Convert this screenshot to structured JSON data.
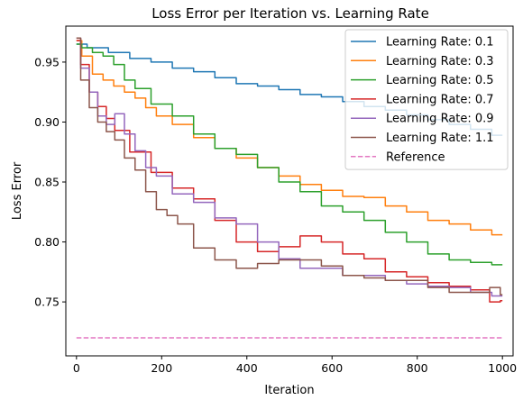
{
  "chart_data": {
    "type": "line",
    "title": "Loss Error per Iteration vs. Learning Rate",
    "xlabel": "Iteration",
    "ylabel": "Loss Error",
    "xlim": [
      -25,
      1025
    ],
    "ylim": [
      0.705,
      0.98
    ],
    "xticks": [
      0,
      200,
      400,
      600,
      800,
      1000
    ],
    "yticks": [
      0.75,
      0.8,
      0.85,
      0.9,
      0.95
    ],
    "ytick_labels": [
      "0.75",
      "0.80",
      "0.85",
      "0.90",
      "0.95"
    ],
    "grid": false,
    "legend": "top-right",
    "series": [
      {
        "name": "Learning Rate: 0.1",
        "color": "#1f77b4",
        "x": [
          0,
          50,
          100,
          150,
          200,
          250,
          300,
          350,
          400,
          450,
          500,
          550,
          600,
          650,
          700,
          750,
          800,
          850,
          900,
          950,
          1000
        ],
        "y": [
          0.965,
          0.962,
          0.958,
          0.953,
          0.95,
          0.945,
          0.942,
          0.937,
          0.932,
          0.93,
          0.927,
          0.923,
          0.921,
          0.917,
          0.913,
          0.91,
          0.906,
          0.902,
          0.898,
          0.894,
          0.889
        ]
      },
      {
        "name": "Learning Rate: 0.3",
        "color": "#ff7f0e",
        "x": [
          0,
          25,
          50,
          75,
          100,
          125,
          150,
          175,
          200,
          250,
          300,
          350,
          400,
          450,
          500,
          550,
          600,
          650,
          700,
          750,
          800,
          850,
          900,
          950,
          1000
        ],
        "y": [
          0.968,
          0.955,
          0.94,
          0.935,
          0.93,
          0.925,
          0.92,
          0.912,
          0.905,
          0.898,
          0.887,
          0.878,
          0.87,
          0.862,
          0.855,
          0.848,
          0.843,
          0.838,
          0.837,
          0.83,
          0.825,
          0.818,
          0.815,
          0.81,
          0.806
        ]
      },
      {
        "name": "Learning Rate: 0.5",
        "color": "#2ca02c",
        "x": [
          0,
          25,
          50,
          75,
          100,
          125,
          150,
          200,
          250,
          300,
          350,
          400,
          450,
          500,
          550,
          600,
          650,
          700,
          750,
          800,
          850,
          900,
          950,
          1000
        ],
        "y": [
          0.965,
          0.962,
          0.958,
          0.955,
          0.948,
          0.935,
          0.928,
          0.915,
          0.905,
          0.89,
          0.878,
          0.873,
          0.862,
          0.85,
          0.842,
          0.83,
          0.825,
          0.818,
          0.808,
          0.8,
          0.79,
          0.785,
          0.783,
          0.781
        ]
      },
      {
        "name": "Learning Rate: 0.7",
        "color": "#d62728",
        "x": [
          0,
          20,
          40,
          60,
          80,
          100,
          150,
          200,
          250,
          300,
          350,
          400,
          450,
          500,
          550,
          600,
          650,
          700,
          750,
          800,
          850,
          900,
          950,
          990,
          1000
        ],
        "y": [
          0.968,
          0.948,
          0.925,
          0.913,
          0.903,
          0.893,
          0.875,
          0.858,
          0.845,
          0.836,
          0.818,
          0.8,
          0.792,
          0.796,
          0.805,
          0.8,
          0.79,
          0.786,
          0.775,
          0.771,
          0.766,
          0.763,
          0.76,
          0.75,
          0.751
        ]
      },
      {
        "name": "Learning Rate: 0.9",
        "color": "#9467bd",
        "x": [
          0,
          20,
          40,
          60,
          80,
          100,
          125,
          150,
          175,
          200,
          250,
          300,
          350,
          400,
          450,
          500,
          550,
          600,
          650,
          700,
          750,
          800,
          850,
          900,
          950,
          1000
        ],
        "y": [
          0.97,
          0.945,
          0.925,
          0.905,
          0.898,
          0.907,
          0.89,
          0.876,
          0.862,
          0.855,
          0.84,
          0.833,
          0.82,
          0.815,
          0.8,
          0.786,
          0.778,
          0.778,
          0.772,
          0.772,
          0.768,
          0.765,
          0.763,
          0.762,
          0.758,
          0.755
        ]
      },
      {
        "name": "Learning Rate: 1.1",
        "color": "#8c564b",
        "x": [
          0,
          20,
          40,
          60,
          80,
          100,
          125,
          150,
          175,
          200,
          225,
          250,
          300,
          350,
          400,
          450,
          500,
          550,
          600,
          650,
          700,
          750,
          800,
          850,
          900,
          950,
          990,
          1000
        ],
        "y": [
          0.97,
          0.935,
          0.912,
          0.9,
          0.892,
          0.885,
          0.87,
          0.86,
          0.842,
          0.827,
          0.822,
          0.815,
          0.795,
          0.785,
          0.778,
          0.782,
          0.785,
          0.785,
          0.78,
          0.772,
          0.77,
          0.768,
          0.768,
          0.762,
          0.758,
          0.758,
          0.762,
          0.756
        ]
      },
      {
        "name": "Reference",
        "color": "#e377c2",
        "dashed": true,
        "x": [
          0,
          1000
        ],
        "y": [
          0.72,
          0.72
        ]
      }
    ]
  }
}
